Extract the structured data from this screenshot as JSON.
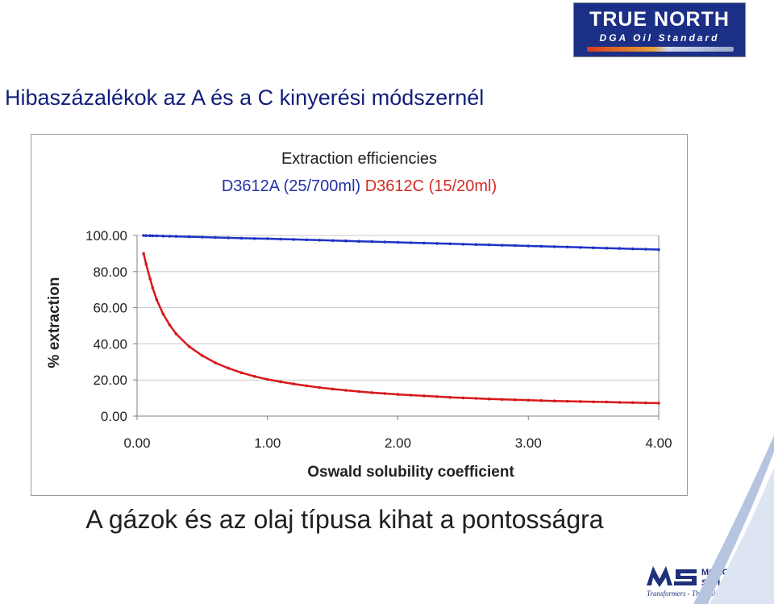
{
  "logo_top": {
    "title": "TRUE NORTH",
    "subtitle": "DGA Oil Standard"
  },
  "page_title": "Hibaszázalékok az A és a C kinyerési módszernél",
  "bottom_caption": "A gázok és az olaj típusa kihat a pontosságra",
  "logo_bottom": {
    "line1": "MORGAN",
    "line2": "SCHAFFER",
    "tagline": "Transformers - The Inside View"
  },
  "colors": {
    "series_a": "#1f33c5",
    "series_c": "#d7191c",
    "title_blue": "#121f7a"
  },
  "chart_data": {
    "type": "line",
    "title": "Extraction efficiencies",
    "subtitle_parts": [
      "D3612A (25/700ml)",
      "D3612C (15/20ml)"
    ],
    "xlabel": "Oswald solubility coefficient",
    "ylabel": "% extraction",
    "xlim": [
      0,
      4
    ],
    "ylim": [
      0,
      100
    ],
    "x_ticks": [
      "0.00",
      "1.00",
      "2.00",
      "3.00",
      "4.00"
    ],
    "y_ticks": [
      "0.00",
      "20.00",
      "40.00",
      "60.00",
      "80.00",
      "100.00"
    ],
    "grid": true,
    "x": [
      0.05,
      0.07,
      0.1,
      0.12,
      0.15,
      0.2,
      0.25,
      0.3,
      0.4,
      0.5,
      0.6,
      0.7,
      0.8,
      0.9,
      1.0,
      1.1,
      1.2,
      1.3,
      1.4,
      1.5,
      1.6,
      1.7,
      1.8,
      1.9,
      2.0,
      2.1,
      2.2,
      2.3,
      2.4,
      2.5,
      2.6,
      2.7,
      2.8,
      2.9,
      3.0,
      3.1,
      3.2,
      3.3,
      3.4,
      3.5,
      3.6,
      3.7,
      3.8,
      3.9,
      4.0
    ],
    "series": [
      {
        "values": [
          100.0,
          99.9,
          99.9,
          99.8,
          99.8,
          99.7,
          99.6,
          99.5,
          99.3,
          99.1,
          98.9,
          98.7,
          98.5,
          98.3,
          98.2,
          98.0,
          97.8,
          97.6,
          97.4,
          97.2,
          97.0,
          96.8,
          96.6,
          96.4,
          96.2,
          96.0,
          95.8,
          95.6,
          95.4,
          95.2,
          95.0,
          94.8,
          94.6,
          94.4,
          94.2,
          94.0,
          93.8,
          93.6,
          93.4,
          93.2,
          93.0,
          92.8,
          92.6,
          92.4,
          92.2
        ]
      },
      {
        "values": [
          90.0,
          84.0,
          76.0,
          71.0,
          64.5,
          56.5,
          50.5,
          45.5,
          38.5,
          33.5,
          29.5,
          26.5,
          24.0,
          22.0,
          20.3,
          19.0,
          17.8,
          16.8,
          15.8,
          15.0,
          14.3,
          13.6,
          13.0,
          12.5,
          12.0,
          11.6,
          11.2,
          10.8,
          10.4,
          10.1,
          9.8,
          9.5,
          9.3,
          9.0,
          8.8,
          8.6,
          8.4,
          8.2,
          8.1,
          7.9,
          7.8,
          7.6,
          7.5,
          7.3,
          7.2
        ]
      }
    ]
  }
}
